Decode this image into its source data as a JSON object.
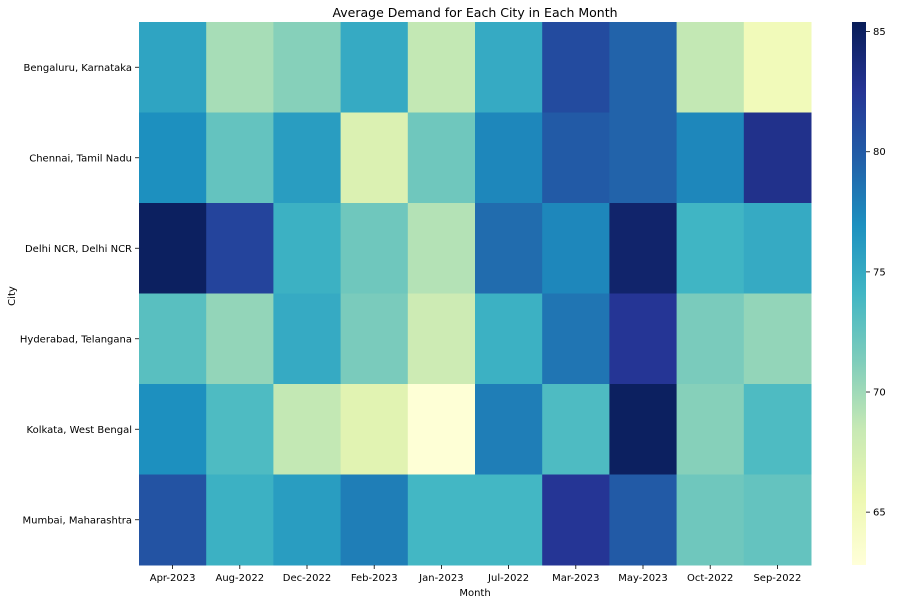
{
  "chart_data": {
    "type": "heatmap",
    "title": "Average Demand for Each City in Each Month",
    "xlabel": "Month",
    "ylabel": "City",
    "x": [
      "Apr-2023",
      "Aug-2022",
      "Dec-2022",
      "Feb-2023",
      "Jan-2023",
      "Jul-2022",
      "Mar-2023",
      "May-2023",
      "Oct-2022",
      "Sep-2022"
    ],
    "y": [
      "Bengaluru, Karnataka",
      "Chennai, Tamil Nadu",
      "Delhi NCR, Delhi NCR",
      "Hyderabad, Telangana",
      "Kolkata, West Bengal",
      "Mumbai, Maharashtra"
    ],
    "values": [
      [
        75.5,
        69.7,
        71.0,
        75.0,
        68.6,
        75.0,
        81.0,
        79.5,
        68.6,
        65.0
      ],
      [
        77.0,
        72.5,
        76.0,
        67.0,
        72.0,
        77.5,
        80.0,
        79.5,
        77.5,
        83.0
      ],
      [
        85.0,
        81.5,
        74.5,
        72.0,
        69.2,
        79.0,
        77.5,
        84.5,
        74.2,
        75.0
      ],
      [
        73.0,
        70.5,
        75.0,
        71.5,
        68.0,
        74.5,
        78.5,
        82.5,
        71.5,
        70.5
      ],
      [
        77.0,
        73.5,
        68.6,
        66.5,
        63.0,
        78.0,
        73.5,
        85.0,
        71.0,
        73.5
      ],
      [
        80.5,
        74.5,
        76.0,
        78.0,
        74.0,
        74.0,
        82.5,
        80.0,
        72.0,
        72.5
      ]
    ],
    "colorbar": {
      "ticks": [
        65,
        70,
        75,
        80,
        85
      ],
      "range": [
        62.8,
        85.4
      ],
      "colormap": "YlGnBu"
    }
  }
}
